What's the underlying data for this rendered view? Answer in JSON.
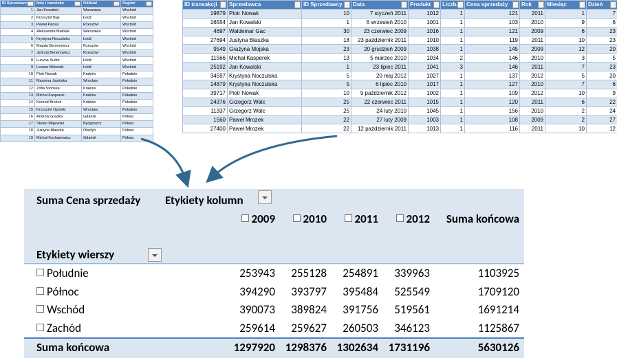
{
  "lookup_table": {
    "headers": [
      "ID Sprzedawcy",
      "Imię i nazwisko",
      "Oddział",
      "Region"
    ],
    "rows": [
      [
        1,
        "Jan Kowalski",
        "Warszawa",
        "Wschód"
      ],
      [
        2,
        "Krzysztof Bąk",
        "Łódź",
        "Wschód"
      ],
      [
        3,
        "Paweł Panas",
        "Rzeszów",
        "Wschód"
      ],
      [
        4,
        "Aleksandra Małolak",
        "Warszawa",
        "Wschód"
      ],
      [
        5,
        "Krystyna Noczulska",
        "Łódź",
        "Wschód"
      ],
      [
        6,
        "Magda Benenowicz",
        "Rzeszów",
        "Wschód"
      ],
      [
        7,
        "Jędrzej Benenowicz",
        "Rzeszów",
        "Wschód"
      ],
      [
        8,
        "Lucyna Sudor",
        "Łódź",
        "Wschód"
      ],
      [
        9,
        "Lesław Miłowski",
        "Łódź",
        "Wschód"
      ],
      [
        10,
        "Piotr Nowak",
        "Kraków",
        "Południe"
      ],
      [
        11,
        "Marzena Jasińska",
        "Wrocław",
        "Południe"
      ],
      [
        12,
        "Zofia Stońska",
        "Kraków",
        "Południe"
      ],
      [
        13,
        "Michał Kasperek",
        "Kraków",
        "Południe"
      ],
      [
        14,
        "Konrad Brożek",
        "Kraków",
        "Południe"
      ],
      [
        15,
        "Krzysztof Opolski",
        "Wrocław",
        "Południe"
      ],
      [
        16,
        "Andrzej Gradka",
        "Gdańsk",
        "Północ"
      ],
      [
        17,
        "Stefan Majewski",
        "Bydgoszcz",
        "Północ"
      ],
      [
        18,
        "Justyna Błaszka",
        "Olsztyn",
        "Północ"
      ],
      [
        19,
        "Michał Kochanowicz",
        "Gdańsk",
        "Północ"
      ]
    ]
  },
  "transactions_table": {
    "headers": [
      "ID transakcji",
      "Sprzedawca",
      "ID Sprzedawcy",
      "Data",
      "Produkt",
      "Liczba",
      "Cena sprzedaży",
      "Rok",
      "Miesiąc",
      "Dzień"
    ],
    "rows": [
      [
        19879,
        "Piotr Nowak",
        10,
        "7 styczeń 2011",
        1012,
        1,
        121,
        2011,
        1,
        7
      ],
      [
        16554,
        "Jan Kowalski",
        1,
        "6 wrzesień 2010",
        1001,
        1,
        103,
        2010,
        9,
        6
      ],
      [
        4697,
        "Waldemar Gac",
        30,
        "23 czerwiec 2009",
        1016,
        1,
        121,
        2009,
        6,
        23
      ],
      [
        27694,
        "Justyna Błaszka",
        18,
        "23 październik 2011",
        1010,
        1,
        119,
        2011,
        10,
        23
      ],
      [
        9549,
        "Grażyna Mojska",
        23,
        "20 grudzień 2009",
        1038,
        1,
        145,
        2009,
        12,
        20
      ],
      [
        11566,
        "Michał Kasperek",
        13,
        "5 marzec 2010",
        1034,
        2,
        146,
        2010,
        3,
        5
      ],
      [
        25192,
        "Jan Kowalski",
        1,
        "23 lipiec 2011",
        1041,
        3,
        146,
        2011,
        7,
        23
      ],
      [
        34597,
        "Krystyna Noczulska",
        5,
        "20 maj 2012",
        1027,
        1,
        137,
        2012,
        5,
        20
      ],
      [
        14879,
        "Krystyna Noczulska",
        5,
        "6 lipiec 2010",
        1017,
        1,
        127,
        2010,
        7,
        6
      ],
      [
        39717,
        "Piotr Nowak",
        10,
        "9 październik 2012",
        1002,
        1,
        109,
        2012,
        10,
        9
      ],
      [
        24376,
        "Grzegorz Walc",
        25,
        "22 czerwiec 2011",
        1015,
        1,
        120,
        2011,
        6,
        22
      ],
      [
        11337,
        "Grzegorz Walc",
        25,
        "24 luty 2010",
        1045,
        1,
        156,
        2010,
        2,
        24
      ],
      [
        1560,
        "Paweł Mrozek",
        22,
        "27 luty 2009",
        1003,
        1,
        108,
        2009,
        2,
        27
      ],
      [
        27400,
        "Paweł Mrozek",
        22,
        "12 październik 2011",
        1013,
        1,
        116,
        2011,
        10,
        12
      ]
    ]
  },
  "pivot": {
    "values_label": "Suma Cena sprzedaży",
    "columns_label": "Etykiety kolumn",
    "rows_label": "Etykiety wierszy",
    "column_headers": [
      "2009",
      "2010",
      "2011",
      "2012",
      "Suma końcowa"
    ],
    "rows": [
      {
        "label": "Południe",
        "values": [
          253943,
          255128,
          254891,
          339963,
          1103925
        ]
      },
      {
        "label": "Północ",
        "values": [
          394290,
          393797,
          395484,
          525549,
          1709120
        ]
      },
      {
        "label": "Wschód",
        "values": [
          390073,
          389824,
          391756,
          519561,
          1691214
        ]
      },
      {
        "label": "Zachód",
        "values": [
          259614,
          259627,
          260503,
          346123,
          1125867
        ]
      }
    ],
    "total": {
      "label": "Suma końcowa",
      "values": [
        1297920,
        1298376,
        1302634,
        1731196,
        5630126
      ]
    }
  }
}
